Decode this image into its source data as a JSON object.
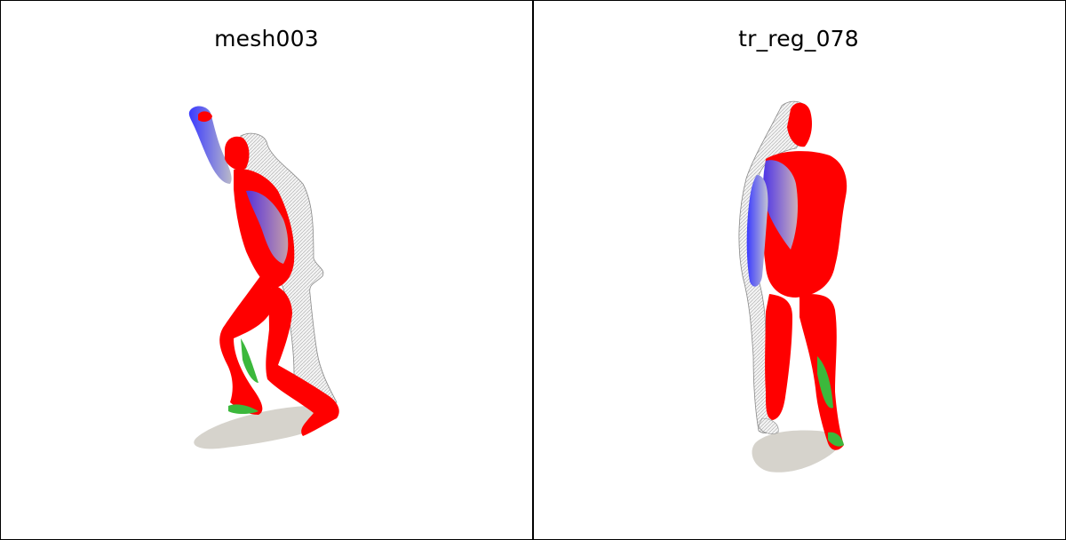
{
  "panels": [
    {
      "title": "mesh003",
      "figure_icon": "human-mesh-render",
      "colors": {
        "primary": "#ff0000",
        "secondary": "#3a3aff",
        "tertiary": "#3cb83c",
        "surface": "#d9d9d9",
        "shadow": "#d6d3cc"
      }
    },
    {
      "title": "tr_reg_078",
      "figure_icon": "human-mesh-render",
      "colors": {
        "primary": "#ff0000",
        "secondary": "#3a3aff",
        "tertiary": "#3cb83c",
        "surface": "#d9d9d9",
        "shadow": "#d6d3cc"
      }
    }
  ]
}
